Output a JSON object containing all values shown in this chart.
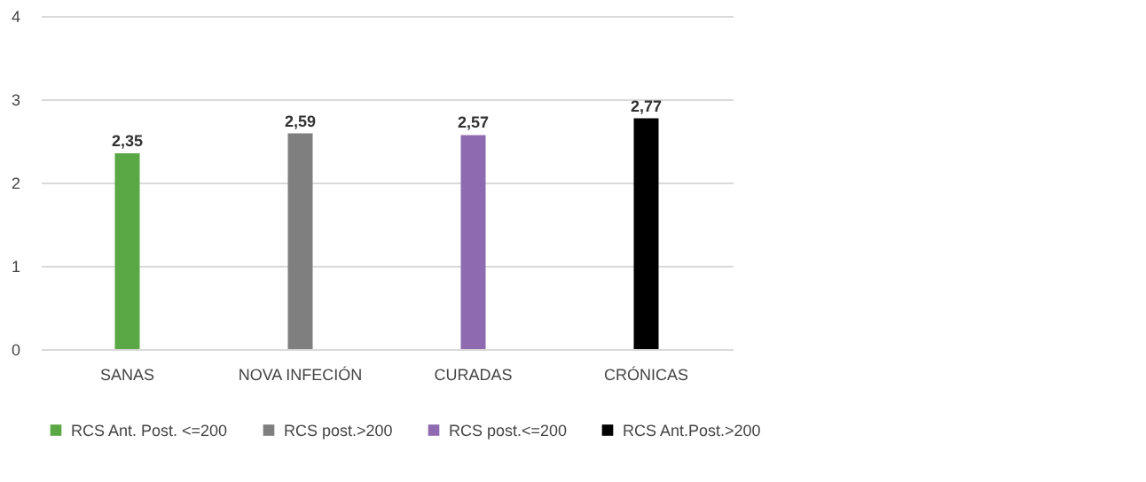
{
  "chart_data": {
    "type": "bar",
    "categories": [
      "SANAS",
      "NOVA INFECIÓN",
      "CURADAS",
      "CRÓNICAS"
    ],
    "series": [
      {
        "name": "RCS Ant. Post. <=200",
        "color": "#5aa845",
        "values": [
          2.35,
          null,
          null,
          null
        ],
        "value_labels": [
          "2,35",
          null,
          null,
          null
        ]
      },
      {
        "name": "RCS post.>200",
        "color": "#7f7f7f",
        "values": [
          null,
          2.59,
          null,
          null
        ],
        "value_labels": [
          null,
          "2,59",
          null,
          null
        ]
      },
      {
        "name": "RCS post.<=200",
        "color": "#8e6bb0",
        "values": [
          null,
          null,
          2.57,
          null
        ],
        "value_labels": [
          null,
          null,
          "2,57",
          null
        ]
      },
      {
        "name": "RCS Ant.Post.>200",
        "color": "#000000",
        "values": [
          null,
          null,
          null,
          2.77
        ],
        "value_labels": [
          null,
          null,
          null,
          "2,77"
        ]
      }
    ],
    "ylim": [
      0,
      4
    ],
    "yticks": [
      0,
      1,
      2,
      3,
      4
    ],
    "grid": "y",
    "legend": "bottom"
  }
}
